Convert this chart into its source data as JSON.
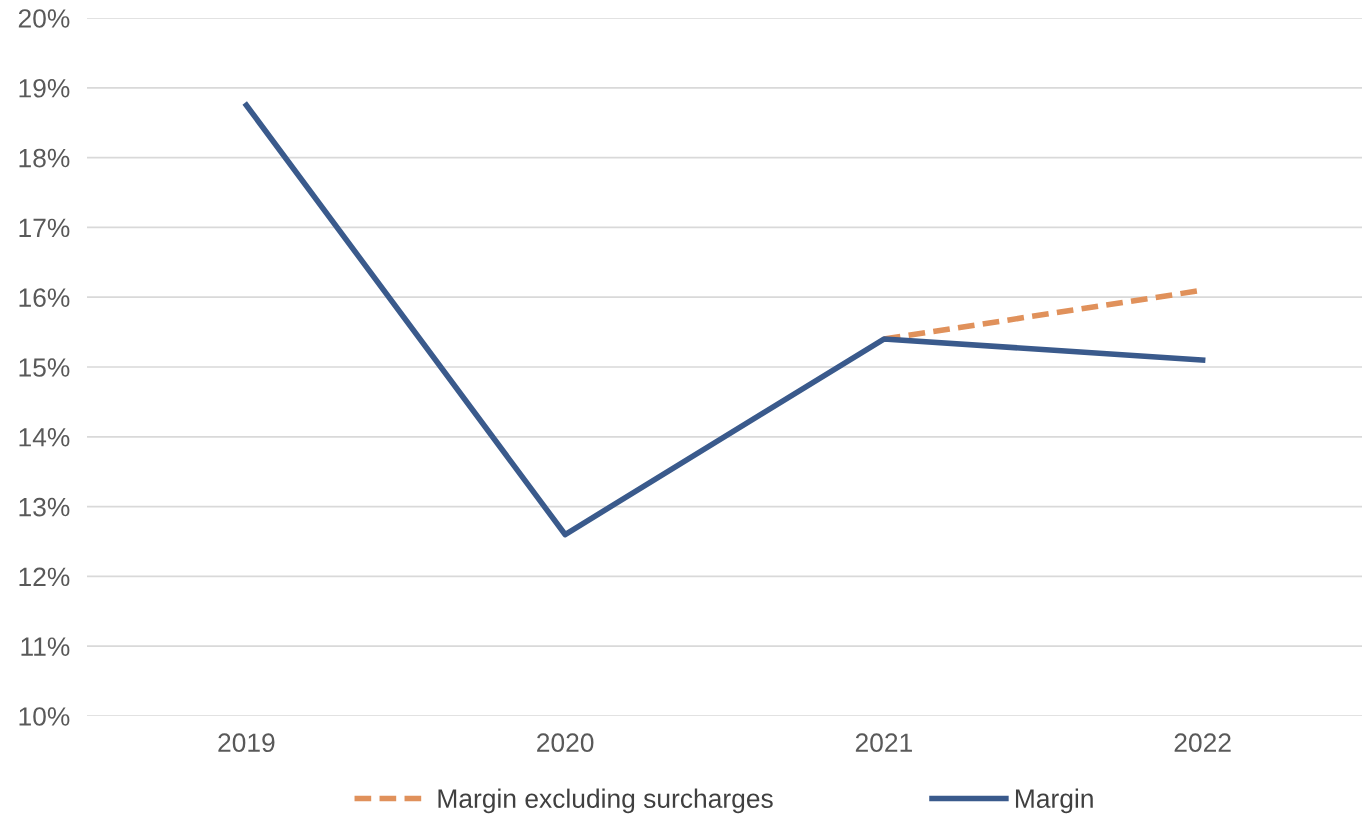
{
  "chart_data": {
    "type": "line",
    "categories": [
      "2019",
      "2020",
      "2021",
      "2022"
    ],
    "series": [
      {
        "name": "Margin excluding surcharges",
        "color": "#e0915b",
        "values": [
          null,
          null,
          15.4,
          16.1
        ],
        "line_style": "dashed"
      },
      {
        "name": "Margin",
        "color": "#3a5a8c",
        "values": [
          18.75,
          12.6,
          15.4,
          15.1
        ],
        "line_style": "solid"
      }
    ],
    "ylim": [
      10,
      20
    ],
    "yticks": [
      {
        "value": 10,
        "label": "10%"
      },
      {
        "value": 11,
        "label": "11%"
      },
      {
        "value": 12,
        "label": "12%"
      },
      {
        "value": 13,
        "label": "13%"
      },
      {
        "value": 14,
        "label": "14%"
      },
      {
        "value": 15,
        "label": "15%"
      },
      {
        "value": 16,
        "label": "16%"
      },
      {
        "value": 17,
        "label": "17%"
      },
      {
        "value": 18,
        "label": "18%"
      },
      {
        "value": 19,
        "label": "19%"
      },
      {
        "value": 20,
        "label": "20%"
      }
    ],
    "grid": "y",
    "legend": "bottom",
    "marker": "none"
  }
}
